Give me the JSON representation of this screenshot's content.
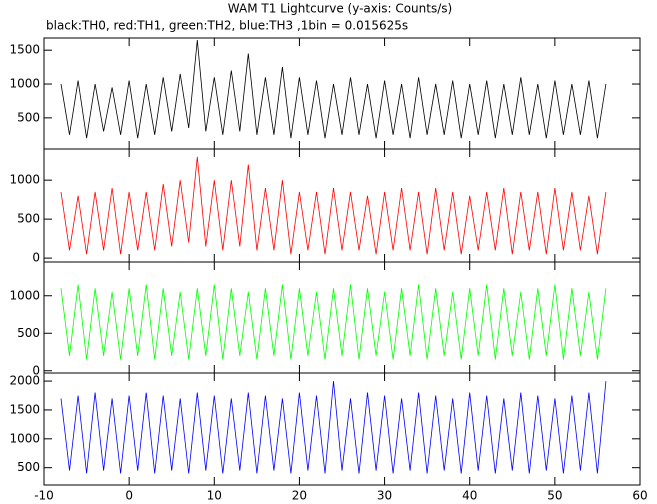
{
  "chart_data": [
    {
      "type": "line",
      "title": "WAM T1 Lightcurve (y-axis: Counts/s)",
      "subtitle": "black:TH0, red:TH1, green:TH2, blue:TH3 ,1bin = 0.015625s",
      "xlim": [
        -10,
        60
      ],
      "ylim": [
        40,
        1680
      ],
      "yticks": [
        500,
        1000,
        1500
      ],
      "x": [
        -8,
        -7,
        -6,
        -5,
        -4,
        -3,
        -2,
        -1,
        0,
        1,
        2,
        3,
        4,
        5,
        6,
        7,
        8,
        9,
        10,
        11,
        12,
        13,
        14,
        15,
        16,
        17,
        18,
        19,
        20,
        21,
        22,
        23,
        24,
        25,
        26,
        27,
        28,
        29,
        30,
        31,
        32,
        33,
        34,
        35,
        36,
        37,
        38,
        39,
        40,
        41,
        42,
        43,
        44,
        45,
        46,
        47,
        48,
        49,
        50,
        51,
        52,
        53,
        54,
        55,
        56
      ],
      "series": [
        {
          "name": "TH0",
          "color": "#000000",
          "values": [
            1000,
            250,
            1050,
            200,
            1000,
            300,
            950,
            250,
            1050,
            200,
            1000,
            250,
            1100,
            300,
            1150,
            350,
            1650,
            300,
            1100,
            250,
            1200,
            300,
            1450,
            250,
            1100,
            250,
            1250,
            200,
            1100,
            250,
            1050,
            200,
            1000,
            250,
            1100,
            250,
            1000,
            200,
            1050,
            250,
            1000,
            200,
            1100,
            250,
            1000,
            250,
            1050,
            200,
            1000,
            250,
            1050,
            200,
            1000,
            250,
            1100,
            250,
            1000,
            200,
            1050,
            250,
            1000,
            250,
            1050,
            200,
            1000
          ]
        }
      ]
    },
    {
      "type": "line",
      "xlim": [
        -10,
        60
      ],
      "ylim": [
        -50,
        1400
      ],
      "yticks": [
        0,
        500,
        1000
      ],
      "x": [
        -8,
        -7,
        -6,
        -5,
        -4,
        -3,
        -2,
        -1,
        0,
        1,
        2,
        3,
        4,
        5,
        6,
        7,
        8,
        9,
        10,
        11,
        12,
        13,
        14,
        15,
        16,
        17,
        18,
        19,
        20,
        21,
        22,
        23,
        24,
        25,
        26,
        27,
        28,
        29,
        30,
        31,
        32,
        33,
        34,
        35,
        36,
        37,
        38,
        39,
        40,
        41,
        42,
        43,
        44,
        45,
        46,
        47,
        48,
        49,
        50,
        51,
        52,
        53,
        54,
        55,
        56
      ],
      "series": [
        {
          "name": "TH1",
          "color": "#ff0000",
          "values": [
            850,
            100,
            800,
            50,
            850,
            100,
            900,
            50,
            850,
            100,
            850,
            100,
            950,
            150,
            1000,
            200,
            1300,
            150,
            1000,
            100,
            1000,
            150,
            1200,
            100,
            900,
            100,
            1000,
            50,
            850,
            100,
            850,
            50,
            900,
            100,
            850,
            100,
            800,
            50,
            850,
            100,
            900,
            100,
            850,
            50,
            900,
            100,
            850,
            50,
            800,
            100,
            850,
            100,
            900,
            50,
            850,
            100,
            850,
            50,
            900,
            100,
            850,
            100,
            800,
            50,
            850
          ]
        }
      ]
    },
    {
      "type": "line",
      "xlim": [
        -10,
        60
      ],
      "ylim": [
        -30,
        1450
      ],
      "yticks": [
        0,
        500,
        1000
      ],
      "x": [
        -8,
        -7,
        -6,
        -5,
        -4,
        -3,
        -2,
        -1,
        0,
        1,
        2,
        3,
        4,
        5,
        6,
        7,
        8,
        9,
        10,
        11,
        12,
        13,
        14,
        15,
        16,
        17,
        18,
        19,
        20,
        21,
        22,
        23,
        24,
        25,
        26,
        27,
        28,
        29,
        30,
        31,
        32,
        33,
        34,
        35,
        36,
        37,
        38,
        39,
        40,
        41,
        42,
        43,
        44,
        45,
        46,
        47,
        48,
        49,
        50,
        51,
        52,
        53,
        54,
        55,
        56
      ],
      "series": [
        {
          "name": "TH2",
          "color": "#00ff00",
          "values": [
            1100,
            200,
            1150,
            150,
            1100,
            200,
            1050,
            150,
            1100,
            200,
            1150,
            150,
            1100,
            200,
            1050,
            150,
            1100,
            200,
            1150,
            150,
            1100,
            200,
            1050,
            150,
            1100,
            200,
            1150,
            150,
            1100,
            200,
            1050,
            150,
            1100,
            200,
            1150,
            150,
            1100,
            200,
            1050,
            150,
            1100,
            200,
            1150,
            150,
            1100,
            200,
            1050,
            150,
            1100,
            200,
            1150,
            150,
            1100,
            200,
            1050,
            150,
            1100,
            200,
            1150,
            150,
            1100,
            200,
            1050,
            150,
            1100
          ]
        }
      ]
    },
    {
      "type": "line",
      "xlim": [
        -10,
        60
      ],
      "ylim": [
        200,
        2140
      ],
      "yticks": [
        500,
        1000,
        1500,
        2000
      ],
      "xticks": [
        -10,
        0,
        10,
        20,
        30,
        40,
        50,
        60
      ],
      "x": [
        -8,
        -7,
        -6,
        -5,
        -4,
        -3,
        -2,
        -1,
        0,
        1,
        2,
        3,
        4,
        5,
        6,
        7,
        8,
        9,
        10,
        11,
        12,
        13,
        14,
        15,
        16,
        17,
        18,
        19,
        20,
        21,
        22,
        23,
        24,
        25,
        26,
        27,
        28,
        29,
        30,
        31,
        32,
        33,
        34,
        35,
        36,
        37,
        38,
        39,
        40,
        41,
        42,
        43,
        44,
        45,
        46,
        47,
        48,
        49,
        50,
        51,
        52,
        53,
        54,
        55,
        56
      ],
      "series": [
        {
          "name": "TH3",
          "color": "#0000ff",
          "values": [
            1700,
            450,
            1750,
            400,
            1800,
            450,
            1700,
            400,
            1750,
            450,
            1800,
            400,
            1750,
            450,
            1700,
            400,
            1800,
            450,
            1750,
            400,
            1700,
            450,
            1800,
            400,
            1750,
            450,
            1700,
            400,
            1800,
            450,
            1750,
            400,
            2000,
            450,
            1700,
            400,
            1800,
            450,
            1750,
            400,
            1700,
            450,
            1800,
            400,
            1750,
            450,
            1700,
            400,
            1800,
            450,
            1750,
            400,
            1700,
            450,
            1800,
            400,
            1750,
            450,
            1700,
            400,
            1750,
            450,
            1800,
            400,
            2000
          ]
        }
      ]
    }
  ]
}
